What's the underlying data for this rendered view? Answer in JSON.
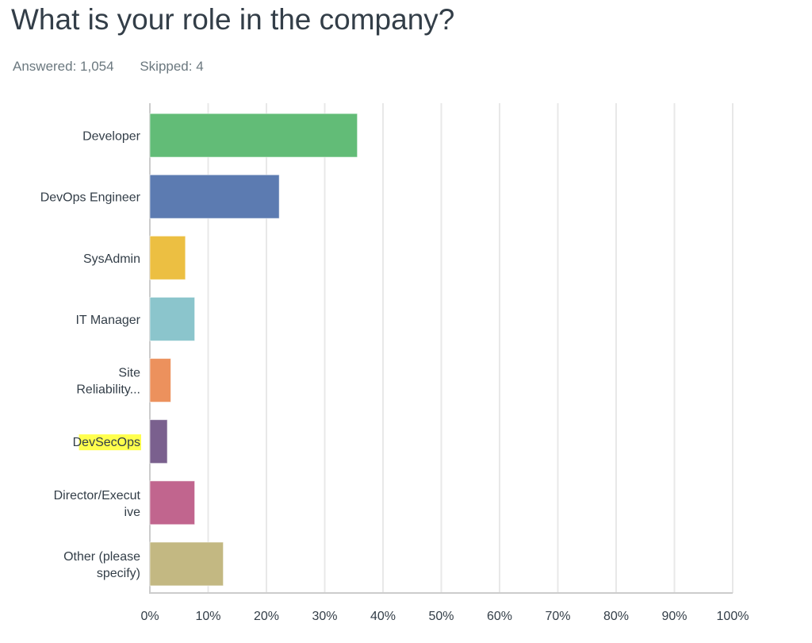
{
  "question": {
    "title": "What is your role in the company?",
    "answered": "Answered: 1,054",
    "skipped": "Skipped: 4"
  },
  "chart_data": {
    "type": "bar",
    "orientation": "horizontal",
    "title": "What is your role in the company?",
    "categories": [
      [
        "Developer"
      ],
      [
        "DevOps Engineer"
      ],
      [
        "SysAdmin"
      ],
      [
        "IT Manager"
      ],
      [
        "Site",
        "Reliability..."
      ],
      [
        "DevSecOps"
      ],
      [
        "Director/Execut",
        "ive"
      ],
      [
        "Other (please",
        "specify)"
      ]
    ],
    "values": [
      35.6,
      22.2,
      6.1,
      7.7,
      3.6,
      3.0,
      7.7,
      12.6
    ],
    "colors": [
      "#62bc77",
      "#5c7bb1",
      "#ecbf42",
      "#8bc5cc",
      "#ec915d",
      "#7a608e",
      "#c1658e",
      "#c3b882"
    ],
    "highlighted_category_index": 5,
    "highlight_color": "#ffff4d",
    "xlim": [
      0,
      100
    ],
    "ticks": [
      "0%",
      "10%",
      "20%",
      "30%",
      "40%",
      "50%",
      "60%",
      "70%",
      "80%",
      "90%",
      "100%"
    ],
    "grid": true,
    "xlabel": "",
    "ylabel": ""
  }
}
